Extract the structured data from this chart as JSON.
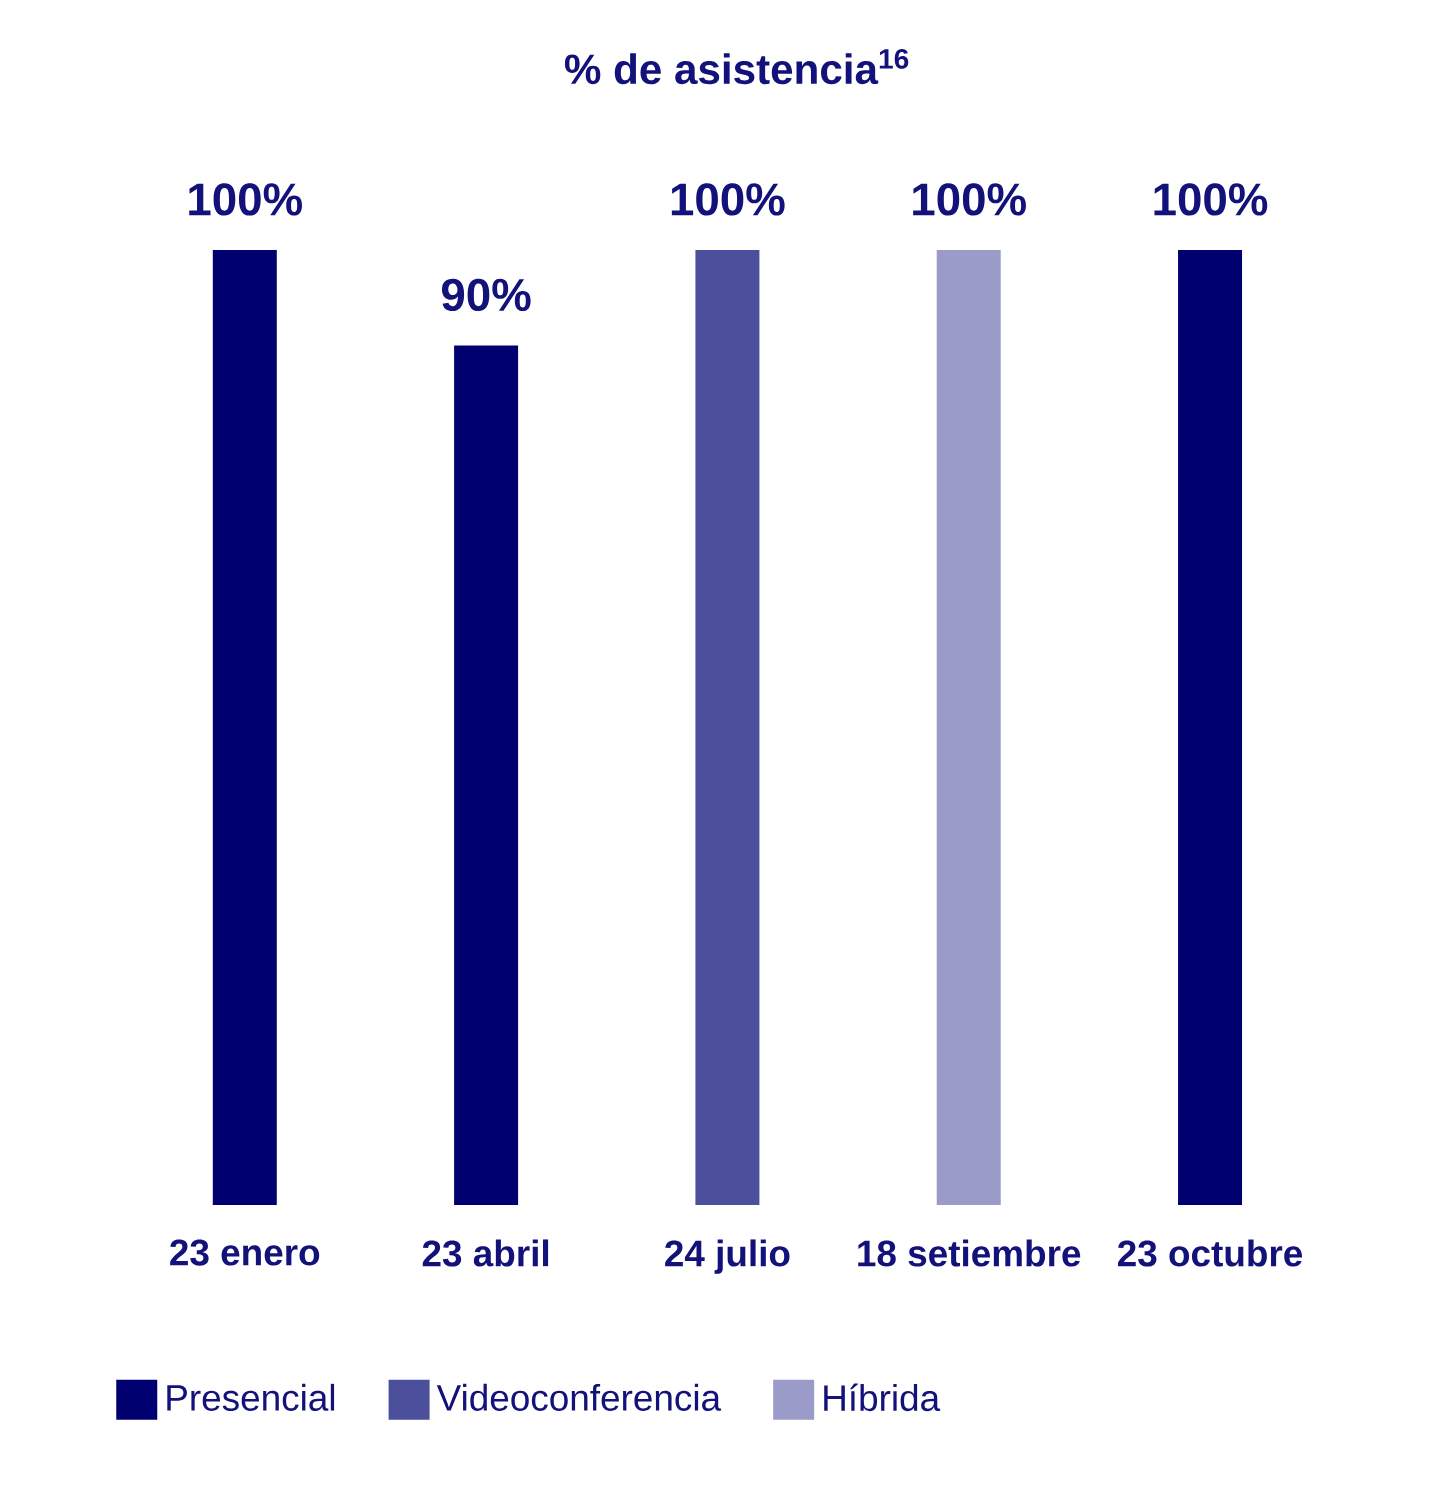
{
  "chart_data": {
    "type": "bar",
    "title": "% de asistencia$^{16}$",
    "categories": [
      "23 enero",
      "23 abril",
      "24 julio",
      "18 setiembre",
      "23 octubre"
    ],
    "series": [
      {
        "name": "Presencial",
        "color": "#000070",
        "values": [
          100,
          90,
          null,
          null,
          100
        ],
        "value_labels": [
          "100%",
          "90%",
          null,
          null,
          "100%"
        ]
      },
      {
        "name": "Videoconferencia",
        "color": "#4b4f9c",
        "values": [
          null,
          null,
          100,
          null,
          null
        ],
        "value_labels": [
          null,
          null,
          "100%",
          null,
          null
        ]
      },
      {
        "name": "Híbrida",
        "color": "#9b9bc9",
        "values": [
          null,
          null,
          null,
          100,
          null
        ],
        "value_labels": [
          null,
          null,
          null,
          "100%",
          null
        ]
      }
    ],
    "legend": "bottom left",
    "tick_labels": "x"
  }
}
